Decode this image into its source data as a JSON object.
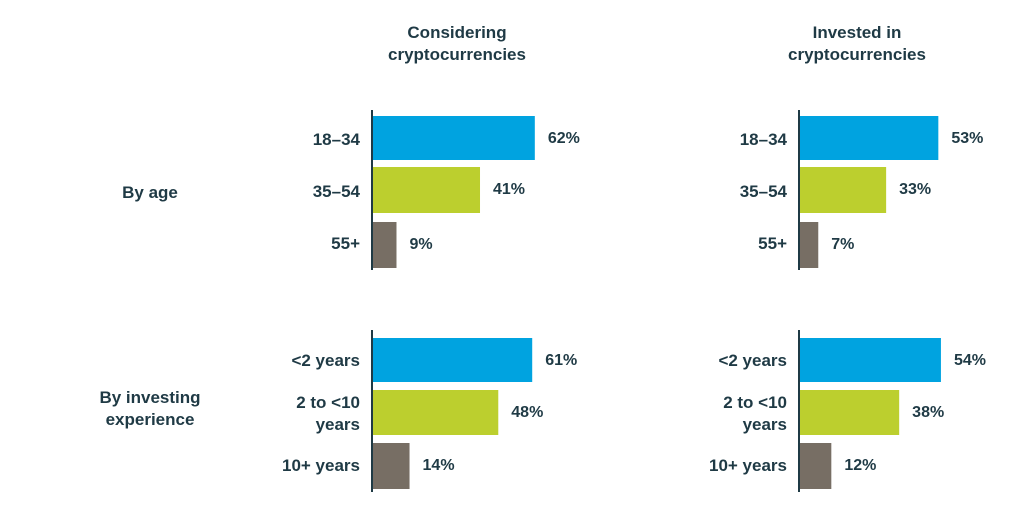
{
  "columns": [
    {
      "title_lines": [
        "Considering",
        "cryptocurrencies"
      ]
    },
    {
      "title_lines": [
        "Invested in",
        "cryptocurrencies"
      ]
    }
  ],
  "groups": [
    {
      "label_lines": [
        "By age"
      ]
    },
    {
      "label_lines": [
        "By investing",
        "experience"
      ]
    }
  ],
  "colors": {
    "cat1": "#00a3e0",
    "cat2": "#bccf2e",
    "cat3": "#776e64",
    "text": "#1f3a45",
    "axis": "#1f3a45"
  },
  "chart_data": [
    {
      "type": "bar",
      "title": "Considering cryptocurrencies",
      "panel": "By age",
      "orientation": "horizontal",
      "categories": [
        "18–34",
        "35–54",
        "55+"
      ],
      "values": [
        62,
        41,
        9
      ],
      "data_labels": [
        "62%",
        "41%",
        "9%"
      ],
      "grid": false
    },
    {
      "type": "bar",
      "title": "Invested in cryptocurrencies",
      "panel": "By age",
      "orientation": "horizontal",
      "categories": [
        "18–34",
        "35–54",
        "55+"
      ],
      "values": [
        53,
        33,
        7
      ],
      "data_labels": [
        "53%",
        "33%",
        "7%"
      ],
      "grid": false
    },
    {
      "type": "bar",
      "title": "Considering cryptocurrencies",
      "panel": "By investing experience",
      "orientation": "horizontal",
      "categories": [
        "<2 years",
        "2 to <10 years",
        "10+ years"
      ],
      "values": [
        61,
        48,
        14
      ],
      "data_labels": [
        "61%",
        "48%",
        "14%"
      ],
      "grid": false
    },
    {
      "type": "bar",
      "title": "Invested in cryptocurrencies",
      "panel": "By investing experience",
      "orientation": "horizontal",
      "categories": [
        "<2 years",
        "2 to <10 years",
        "10+ years"
      ],
      "values": [
        54,
        38,
        12
      ],
      "data_labels": [
        "54%",
        "38%",
        "12%"
      ],
      "grid": false
    }
  ]
}
